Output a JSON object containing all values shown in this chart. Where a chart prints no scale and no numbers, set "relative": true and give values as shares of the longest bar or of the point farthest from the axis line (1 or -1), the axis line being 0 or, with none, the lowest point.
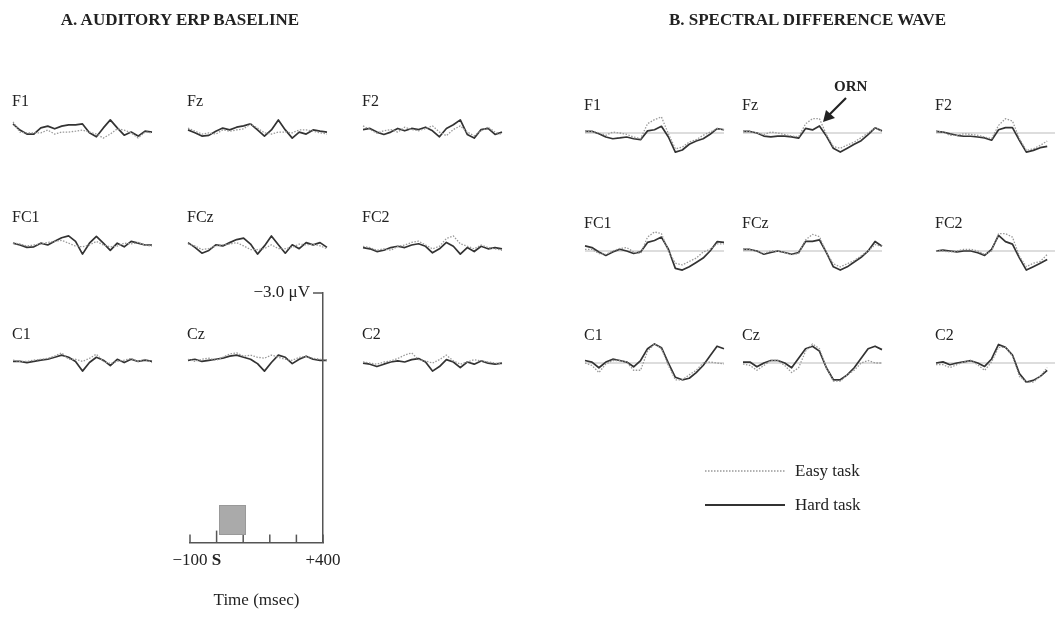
{
  "chart_data": [
    {
      "type": "line",
      "title": "F1",
      "relative": true,
      "tick_labels": false,
      "annotations": [
        "A. AUDITORY ERP BASELINE"
      ],
      "categories": [
        null,
        null,
        null,
        null,
        null,
        null,
        null,
        null,
        null,
        null,
        null,
        null,
        null,
        null,
        null,
        null,
        null,
        null,
        null,
        null,
        null
      ],
      "series": [
        {
          "color": "#999999",
          "line_style": "dotted",
          "values": [
            0.89,
            0.33,
            0.29,
            0.29,
            0.29,
            0.44,
            0.22,
            0.33,
            0.33,
            0.38,
            0.44,
            0.33,
            0.22,
            0,
            0.22,
            0.51,
            0.44,
            0.29,
            0,
            0.33,
            0.29
          ]
        },
        {
          "color": "#333333",
          "line_style": "solid",
          "values": [
            0.78,
            0.44,
            0.22,
            0.22,
            0.56,
            0.66,
            0.51,
            0.66,
            0.73,
            0.73,
            0.78,
            0.29,
            0.07,
            0.56,
            1,
            0.56,
            0.16,
            0.33,
            0.11,
            0.38,
            0.33
          ]
        }
      ]
    },
    {
      "type": "line",
      "title": "Fz",
      "relative": true,
      "tick_labels": false,
      "categories": [
        null,
        null,
        null,
        null,
        null,
        null,
        null,
        null,
        null,
        null,
        null,
        null,
        null,
        null,
        null,
        null,
        null,
        null,
        null,
        null,
        null
      ],
      "series": [
        {
          "color": "#999999",
          "line_style": "dotted",
          "values": [
            0.55,
            0.38,
            0.22,
            0.29,
            0.22,
            0.45,
            0.38,
            0.45,
            0.51,
            0.78,
            0.55,
            0.29,
            0.22,
            0.33,
            0.33,
            0.29,
            0.45,
            0.45,
            0.38,
            0.29,
            0.22
          ]
        },
        {
          "color": "#333333",
          "line_style": "solid",
          "values": [
            0.45,
            0.29,
            0.11,
            0.15,
            0.38,
            0.55,
            0.45,
            0.6,
            0.67,
            0.78,
            0.45,
            0.11,
            0.45,
            1,
            0.45,
            0,
            0.33,
            0.22,
            0.45,
            0.38,
            0.33
          ]
        }
      ]
    },
    {
      "type": "line",
      "title": "F2",
      "relative": true,
      "tick_labels": false,
      "categories": [
        null,
        null,
        null,
        null,
        null,
        null,
        null,
        null,
        null,
        null,
        null,
        null,
        null,
        null,
        null,
        null,
        null,
        null,
        null,
        null,
        null
      ],
      "series": [
        {
          "color": "#999999",
          "line_style": "dotted",
          "values": [
            0.67,
            0.47,
            0.27,
            0.4,
            0.47,
            0.33,
            0.6,
            0.47,
            0.4,
            0.53,
            0.67,
            0.33,
            0.13,
            0.47,
            0.67,
            0.33,
            0.13,
            0.4,
            0.6,
            0.33,
            0.2
          ]
        },
        {
          "color": "#333333",
          "line_style": "solid",
          "values": [
            0.47,
            0.53,
            0.33,
            0.2,
            0.33,
            0.53,
            0.4,
            0.53,
            0.47,
            0.6,
            0.4,
            0.07,
            0.53,
            0.73,
            1,
            0.2,
            0,
            0.47,
            0.53,
            0.2,
            0.33
          ]
        }
      ]
    },
    {
      "type": "line",
      "title": "FC1",
      "relative": true,
      "tick_labels": false,
      "categories": [
        null,
        null,
        null,
        null,
        null,
        null,
        null,
        null,
        null,
        null,
        null,
        null,
        null,
        null,
        null,
        null,
        null,
        null,
        null,
        null,
        null
      ],
      "series": [
        {
          "color": "#999999",
          "line_style": "dotted",
          "values": [
            0.6,
            0.56,
            0.44,
            0.5,
            0.56,
            0.64,
            0.7,
            0.76,
            0.6,
            0.44,
            0.4,
            0.5,
            0.7,
            0.5,
            0.4,
            0.44,
            0.6,
            0.56,
            0.64,
            0.5,
            0.44
          ]
        },
        {
          "color": "#333333",
          "line_style": "solid",
          "values": [
            0.6,
            0.5,
            0.37,
            0.4,
            0.6,
            0.5,
            0.7,
            0.9,
            1,
            0.7,
            0,
            0.6,
            0.97,
            0.6,
            0.2,
            0.6,
            0.4,
            0.7,
            0.6,
            0.5,
            0.5
          ]
        }
      ]
    },
    {
      "type": "line",
      "title": "FCz",
      "relative": true,
      "tick_labels": false,
      "categories": [
        null,
        null,
        null,
        null,
        null,
        null,
        null,
        null,
        null,
        null,
        null,
        null,
        null,
        null,
        null,
        null,
        null,
        null,
        null,
        null,
        null
      ],
      "series": [
        {
          "color": "#999999",
          "line_style": "dotted",
          "values": [
            0.55,
            0.45,
            0.25,
            0.3,
            0.45,
            0.51,
            0.55,
            0.63,
            0.45,
            0.25,
            0.25,
            0.3,
            0.51,
            0.3,
            0.3,
            0.37,
            0.55,
            0.51,
            0.55,
            0.45,
            0.3
          ]
        },
        {
          "color": "#333333",
          "line_style": "solid",
          "values": [
            0.63,
            0.37,
            0.05,
            0.2,
            0.51,
            0.45,
            0.63,
            0.8,
            0.88,
            0.55,
            0,
            0.45,
            1,
            0.51,
            0.05,
            0.51,
            0.3,
            0.63,
            0.51,
            0.63,
            0.37
          ]
        }
      ]
    },
    {
      "type": "line",
      "title": "FC2",
      "relative": true,
      "tick_labels": false,
      "categories": [
        null,
        null,
        null,
        null,
        null,
        null,
        null,
        null,
        null,
        null,
        null,
        null,
        null,
        null,
        null,
        null,
        null,
        null,
        null,
        null,
        null
      ],
      "series": [
        {
          "color": "#999999",
          "line_style": "dotted",
          "values": [
            0.43,
            0.36,
            0.21,
            0.29,
            0.21,
            0.43,
            0.5,
            0.64,
            0.71,
            0.5,
            0.29,
            0.43,
            0.86,
            1,
            0.57,
            0.43,
            0.29,
            0.5,
            0.36,
            0.29,
            0.21
          ]
        },
        {
          "color": "#333333",
          "line_style": "solid",
          "values": [
            0.36,
            0.29,
            0.14,
            0.21,
            0.36,
            0.43,
            0.36,
            0.5,
            0.57,
            0.43,
            0.07,
            0.29,
            0.64,
            0.43,
            0,
            0.36,
            0.14,
            0.43,
            0.29,
            0.36,
            0.29
          ]
        }
      ]
    },
    {
      "type": "line",
      "title": "C1",
      "relative": true,
      "tick_labels": false,
      "categories": [
        null,
        null,
        null,
        null,
        null,
        null,
        null,
        null,
        null,
        null,
        null,
        null,
        null,
        null,
        null,
        null,
        null,
        null,
        null,
        null,
        null
      ],
      "series": [
        {
          "color": "#999999",
          "line_style": "dotted",
          "values": [
            0.6,
            0.53,
            0.53,
            0.6,
            0.65,
            0.7,
            0.83,
            1,
            0.65,
            0.65,
            0.53,
            0.7,
            0.93,
            0.53,
            0.42,
            0.53,
            0.6,
            0.7,
            0.53,
            0.65,
            0.47
          ]
        },
        {
          "color": "#333333",
          "line_style": "solid",
          "values": [
            0.53,
            0.53,
            0.47,
            0.53,
            0.6,
            0.65,
            0.76,
            0.88,
            0.76,
            0.53,
            0,
            0.47,
            0.76,
            0.6,
            0.3,
            0.65,
            0.47,
            0.65,
            0.53,
            0.6,
            0.53
          ]
        }
      ]
    },
    {
      "type": "line",
      "title": "Cz",
      "relative": true,
      "tick_labels": false,
      "categories": [
        null,
        null,
        null,
        null,
        null,
        null,
        null,
        null,
        null,
        null,
        null,
        null,
        null,
        null,
        null,
        null,
        null,
        null,
        null,
        null,
        null
      ],
      "series": [
        {
          "color": "#999999",
          "line_style": "dotted",
          "values": [
            0.65,
            0.53,
            0.65,
            0.71,
            0.59,
            0.76,
            0.94,
            1,
            0.82,
            0.88,
            0.76,
            0.71,
            0.88,
            0.76,
            0.65,
            0.59,
            0.76,
            0.82,
            0.71,
            0.65,
            0.59
          ]
        },
        {
          "color": "#333333",
          "line_style": "solid",
          "values": [
            0.59,
            0.65,
            0.53,
            0.59,
            0.65,
            0.71,
            0.82,
            0.88,
            0.76,
            0.65,
            0.41,
            0,
            0.47,
            0.88,
            0.76,
            0.41,
            0.65,
            0.82,
            0.65,
            0.59,
            0.59
          ]
        }
      ]
    },
    {
      "type": "line",
      "title": "C2",
      "relative": true,
      "tick_labels": false,
      "categories": [
        null,
        null,
        null,
        null,
        null,
        null,
        null,
        null,
        null,
        null,
        null,
        null,
        null,
        null,
        null,
        null,
        null,
        null,
        null,
        null,
        null
      ],
      "series": [
        {
          "color": "#999999",
          "line_style": "dotted",
          "values": [
            0.5,
            0.44,
            0.38,
            0.5,
            0.56,
            0.69,
            0.88,
            1,
            0.63,
            0.56,
            0.44,
            0.63,
            0.88,
            0.56,
            0.38,
            0.5,
            0.63,
            0.56,
            0.5,
            0.44,
            0.38
          ]
        },
        {
          "color": "#333333",
          "line_style": "solid",
          "values": [
            0.44,
            0.38,
            0.25,
            0.38,
            0.5,
            0.56,
            0.5,
            0.63,
            0.69,
            0.5,
            0,
            0.25,
            0.63,
            0.5,
            0.19,
            0.5,
            0.38,
            0.56,
            0.44,
            0.38,
            0.44
          ]
        }
      ]
    },
    {
      "type": "line",
      "title": "F1",
      "relative": true,
      "tick_labels": false,
      "annotations": [
        "B. SPECTRAL DIFFERENCE WAVE"
      ],
      "ref_lines": [
        {
          "axis": "y",
          "value": 0,
          "color": "#bbbbbb"
        }
      ],
      "categories": [
        null,
        null,
        null,
        null,
        null,
        null,
        null,
        null,
        null,
        null,
        null,
        null,
        null,
        null,
        null,
        null,
        null,
        null,
        null,
        null,
        null
      ],
      "series": [
        {
          "color": "#999999",
          "line_style": "dotted",
          "values": [
            0.09,
            0.09,
            0,
            -0.12,
            0.05,
            0,
            -0.07,
            -0.21,
            -0.3,
            0.49,
            0.7,
            0.84,
            -0.04,
            -0.83,
            -0.74,
            -0.47,
            -0.35,
            -0.12,
            0.05,
            0.23,
            0.17
          ]
        },
        {
          "color": "#333333",
          "line_style": "solid",
          "values": [
            0.09,
            0.09,
            -0.04,
            -0.21,
            -0.3,
            -0.26,
            -0.21,
            -0.3,
            -0.35,
            0.11,
            0.17,
            0.35,
            -0.21,
            -1,
            -0.89,
            -0.59,
            -0.42,
            -0.3,
            -0.07,
            0.23,
            0.17
          ]
        }
      ]
    },
    {
      "type": "line",
      "title": "Fz",
      "relative": true,
      "tick_labels": false,
      "annotations": [
        "ORN"
      ],
      "ref_lines": [
        {
          "axis": "y",
          "value": 0,
          "color": "#bbbbbb"
        }
      ],
      "categories": [
        null,
        null,
        null,
        null,
        null,
        null,
        null,
        null,
        null,
        null,
        null,
        null,
        null,
        null,
        null,
        null,
        null,
        null,
        null,
        null,
        null
      ],
      "series": [
        {
          "color": "#999999",
          "line_style": "dotted",
          "values": [
            0.08,
            0.08,
            0,
            -0.08,
            0.05,
            0,
            -0.08,
            -0.16,
            -0.2,
            0.48,
            0.75,
            0.75,
            -0.08,
            -0.71,
            -0.8,
            -0.63,
            -0.48,
            -0.24,
            0,
            0.27,
            0.11
          ]
        },
        {
          "color": "#333333",
          "line_style": "solid",
          "values": [
            0.08,
            0.08,
            0,
            -0.16,
            -0.2,
            -0.16,
            -0.16,
            -0.2,
            -0.27,
            0.24,
            0.16,
            0.37,
            -0.16,
            -0.8,
            -1,
            -0.8,
            -0.59,
            -0.4,
            -0.08,
            0.27,
            0.11
          ]
        }
      ]
    },
    {
      "type": "line",
      "title": "F2",
      "relative": true,
      "tick_labels": false,
      "ref_lines": [
        {
          "axis": "y",
          "value": 0,
          "color": "#bbbbbb"
        }
      ],
      "categories": [
        null,
        null,
        null,
        null,
        null,
        null,
        null,
        null,
        null,
        null,
        null,
        null,
        null,
        null,
        null,
        null,
        null,
        null,
        null,
        null,
        null
      ],
      "series": [
        {
          "color": "#999999",
          "line_style": "dotted",
          "values": [
            0.09,
            0.05,
            -0.12,
            -0.12,
            -0.04,
            -0.07,
            -0.12,
            -0.21,
            -0.3,
            0.4,
            0.75,
            0.63,
            -0.3,
            -0.91,
            -0.83,
            -0.65,
            -0.42,
            null,
            null,
            null,
            null
          ]
        },
        {
          "color": "#333333",
          "line_style": "solid",
          "values": [
            0.09,
            0.05,
            -0.04,
            -0.12,
            -0.17,
            -0.17,
            -0.21,
            -0.26,
            -0.38,
            0.17,
            0.28,
            0.28,
            -0.38,
            -1,
            -0.91,
            -0.77,
            -0.7,
            null,
            null,
            null,
            null
          ]
        }
      ]
    },
    {
      "type": "line",
      "title": "FC1",
      "relative": true,
      "tick_labels": false,
      "ref_lines": [
        {
          "axis": "y",
          "value": 0,
          "color": "#bbbbbb"
        }
      ],
      "categories": [
        null,
        null,
        null,
        null,
        null,
        null,
        null,
        null,
        null,
        null,
        null,
        null,
        null,
        null,
        null,
        null,
        null,
        null,
        null,
        null,
        null
      ],
      "series": [
        {
          "color": "#999999",
          "line_style": "dotted",
          "values": [
            0.09,
            0.09,
            -0.13,
            -0.18,
            0,
            0.13,
            0.18,
            -0.05,
            -0.13,
            0.73,
            1,
            0.91,
            0,
            -0.64,
            -0.73,
            -0.55,
            -0.37,
            -0.05,
            0.09,
            0.37,
            0.37
          ]
        },
        {
          "color": "#333333",
          "line_style": "solid",
          "values": [
            0.27,
            0.18,
            -0.05,
            -0.23,
            -0.05,
            0.09,
            0,
            -0.13,
            -0.05,
            0.45,
            0.55,
            0.73,
            0.09,
            -0.91,
            -1,
            -0.82,
            -0.6,
            -0.37,
            0,
            0.49,
            0.45
          ]
        }
      ]
    },
    {
      "type": "line",
      "title": "FCz",
      "relative": true,
      "tick_labels": false,
      "ref_lines": [
        {
          "axis": "y",
          "value": 0,
          "color": "#bbbbbb"
        }
      ],
      "categories": [
        null,
        null,
        null,
        null,
        null,
        null,
        null,
        null,
        null,
        null,
        null,
        null,
        null,
        null,
        null,
        null,
        null,
        null,
        null,
        null,
        null
      ],
      "series": [
        {
          "color": "#999999",
          "line_style": "dotted",
          "values": [
            0.08,
            0.08,
            -0.03,
            -0.13,
            0,
            0,
            -0.08,
            -0.2,
            -0.13,
            0.58,
            0.87,
            0.75,
            -0.08,
            -0.67,
            -0.83,
            -0.67,
            -0.5,
            -0.25,
            0,
            0.33,
            0.25
          ]
        },
        {
          "color": "#333333",
          "line_style": "solid",
          "values": [
            0.08,
            0.08,
            0,
            -0.17,
            -0.08,
            0,
            -0.08,
            -0.17,
            -0.08,
            0.5,
            0.5,
            0.58,
            -0.08,
            -0.83,
            -1,
            -0.83,
            -0.58,
            -0.33,
            0,
            0.5,
            0.25
          ]
        }
      ]
    },
    {
      "type": "line",
      "title": "FC2",
      "relative": true,
      "tick_labels": false,
      "ref_lines": [
        {
          "axis": "y",
          "value": 0,
          "color": "#bbbbbb"
        }
      ],
      "categories": [
        null,
        null,
        null,
        null,
        null,
        null,
        null,
        null,
        null,
        null,
        null,
        null,
        null,
        null,
        null,
        null,
        null,
        null,
        null,
        null,
        null
      ],
      "series": [
        {
          "color": "#999999",
          "line_style": "dotted",
          "values": [
            0,
            0,
            -0.05,
            0,
            0.09,
            0.09,
            0,
            -0.18,
            0,
            0.91,
            0.91,
            0.73,
            -0.27,
            -0.82,
            -0.64,
            -0.55,
            -0.18,
            null,
            null,
            null,
            null
          ]
        },
        {
          "color": "#333333",
          "line_style": "solid",
          "values": [
            0,
            0.05,
            0,
            -0.05,
            0,
            0,
            -0.09,
            -0.23,
            0.09,
            0.82,
            0.49,
            0.36,
            -0.36,
            -1,
            -0.82,
            -0.64,
            -0.45,
            null,
            null,
            null,
            null
          ]
        }
      ]
    },
    {
      "type": "line",
      "title": "C1",
      "relative": true,
      "tick_labels": false,
      "ref_lines": [
        {
          "axis": "y",
          "value": 0,
          "color": "#bbbbbb"
        }
      ],
      "categories": [
        null,
        null,
        null,
        null,
        null,
        null,
        null,
        null,
        null,
        null,
        null,
        null,
        null,
        null,
        null,
        null,
        null,
        null,
        null,
        null,
        null
      ],
      "series": [
        {
          "color": "#999999",
          "line_style": "dotted",
          "values": [
            0,
            -0.13,
            -0.5,
            -0.05,
            0.13,
            0.13,
            0.05,
            -0.38,
            -0.38,
            0.62,
            1,
            0.75,
            -0.13,
            -0.88,
            -0.88,
            -0.62,
            -0.38,
            0,
            0.05,
            0,
            -0.05
          ]
        },
        {
          "color": "#333333",
          "line_style": "solid",
          "values": [
            0.13,
            0.05,
            -0.25,
            0.05,
            0.2,
            0.13,
            0.05,
            -0.2,
            0.13,
            0.75,
            1,
            0.8,
            0,
            -0.75,
            -0.88,
            -0.8,
            -0.5,
            -0.13,
            0.38,
            0.88,
            0.75
          ]
        }
      ]
    },
    {
      "type": "line",
      "title": "Cz",
      "relative": true,
      "tick_labels": false,
      "ref_lines": [
        {
          "axis": "y",
          "value": 0,
          "color": "#bbbbbb"
        }
      ],
      "categories": [
        null,
        null,
        null,
        null,
        null,
        null,
        null,
        null,
        null,
        null,
        null,
        null,
        null,
        null,
        null,
        null,
        null,
        null,
        null,
        null,
        null
      ],
      "series": [
        {
          "color": "#999999",
          "line_style": "dotted",
          "values": [
            -0.05,
            -0.13,
            -0.38,
            -0.13,
            0.13,
            0.13,
            -0.13,
            -0.5,
            -0.25,
            0.62,
            1,
            0.75,
            -0.25,
            -0.95,
            -0.95,
            -0.62,
            -0.38,
            0,
            0.13,
            0,
            0
          ]
        },
        {
          "color": "#333333",
          "line_style": "solid",
          "values": [
            0.05,
            0.05,
            -0.2,
            0,
            0.13,
            0.13,
            0,
            -0.25,
            0.25,
            0.75,
            0.88,
            0.62,
            -0.25,
            -0.88,
            -0.88,
            -0.62,
            -0.25,
            0.25,
            0.75,
            0.88,
            0.7
          ]
        }
      ]
    },
    {
      "type": "line",
      "title": "C2",
      "relative": true,
      "tick_labels": false,
      "legend": "bottom",
      "ref_lines": [
        {
          "axis": "y",
          "value": 0,
          "color": "#bbbbbb"
        }
      ],
      "categories": [
        null,
        null,
        null,
        null,
        null,
        null,
        null,
        null,
        null,
        null,
        null,
        null,
        null,
        null,
        null,
        null,
        null,
        null,
        null,
        null,
        null
      ],
      "series": [
        {
          "name": "Easy task",
          "color": "#999999",
          "line_style": "dotted",
          "values": [
            -0.09,
            -0.09,
            -0.24,
            -0.09,
            0.06,
            0.12,
            -0.09,
            -0.39,
            0.06,
            0.82,
            0.82,
            0.36,
            -0.7,
            -1,
            -1,
            -0.7,
            -0.24,
            null,
            null,
            null,
            null
          ]
        },
        {
          "name": "Hard task",
          "color": "#333333",
          "line_style": "solid",
          "values": [
            0,
            0.06,
            -0.09,
            0,
            0.06,
            0.12,
            0,
            -0.18,
            0.21,
            0.97,
            0.82,
            0.42,
            -0.55,
            -1,
            -0.91,
            -0.7,
            -0.39,
            null,
            null,
            null,
            null
          ]
        }
      ]
    },
    {
      "type": "other",
      "xlabel": "Time (msec)",
      "annotations": [
        "−3.0 μV",
        "−100",
        "S",
        "+400"
      ]
    }
  ]
}
